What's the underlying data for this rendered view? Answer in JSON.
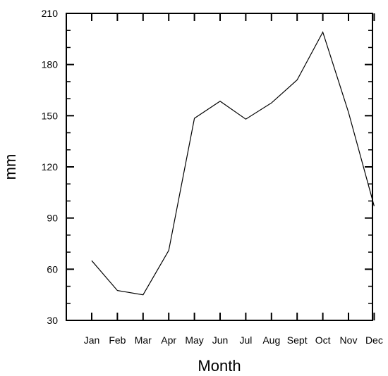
{
  "chart_data": {
    "type": "line",
    "title": "",
    "xlabel": "Month",
    "ylabel": "mm",
    "categories": [
      "Jan",
      "Feb",
      "Mar",
      "Apr",
      "May",
      "Jun",
      "Jul",
      "Aug",
      "Sept",
      "Oct",
      "Nov",
      "Dec"
    ],
    "series": [
      {
        "values": [
          65,
          47.5,
          45,
          71,
          148.5,
          158.5,
          148,
          157.5,
          171,
          199,
          152,
          97
        ]
      }
    ],
    "ylim": [
      30,
      210
    ],
    "yticks": [
      "30",
      "60",
      "90",
      "120",
      "150",
      "180",
      "210"
    ],
    "grid": false,
    "legend": "none",
    "line_color": "#000000"
  }
}
